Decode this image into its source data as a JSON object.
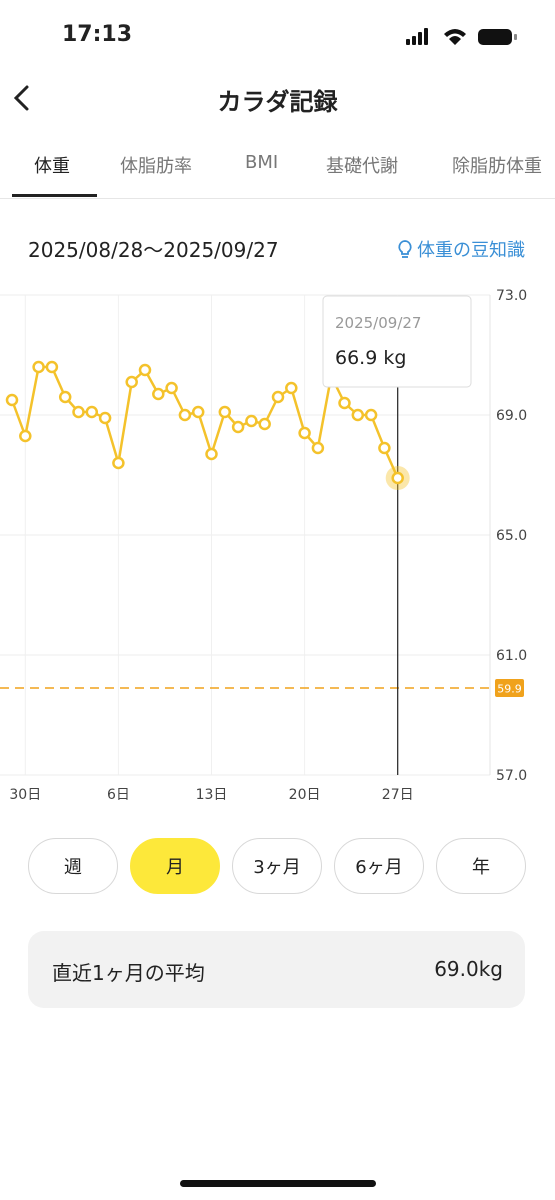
{
  "status_bar": {
    "time": "17:13"
  },
  "header": {
    "title": "カラダ記録"
  },
  "tabs": [
    "体重",
    "体脂肪率",
    "BMI",
    "基礎代謝",
    "除脂肪体重"
  ],
  "selected_tab": 0,
  "date_range": "2025/08/28～2025/09/27",
  "tip_link": "体重の豆知識",
  "chart_data": {
    "type": "line",
    "categories": [
      null,
      "30日",
      null,
      null,
      null,
      null,
      null,
      null,
      "6日",
      null,
      null,
      null,
      null,
      null,
      null,
      "13日",
      null,
      null,
      null,
      null,
      null,
      null,
      "20日",
      null,
      null,
      null,
      null,
      null,
      null,
      "27日"
    ],
    "series": [
      {
        "name": "体重",
        "color": "#f4c22b",
        "values": [
          69.5,
          68.3,
          70.6,
          70.6,
          69.6,
          69.1,
          69.1,
          68.9,
          67.4,
          70.1,
          70.5,
          69.7,
          69.9,
          69.0,
          69.1,
          67.7,
          69.1,
          68.6,
          68.8,
          68.7,
          69.6,
          69.9,
          68.4,
          67.9,
          70.3,
          69.4,
          69.0,
          69.0,
          67.9,
          66.9
        ]
      }
    ],
    "ylim": [
      57,
      73
    ],
    "yticks": [
      {
        "value": 73,
        "label": "73.0"
      },
      {
        "value": 69,
        "label": "69.0"
      },
      {
        "value": 65,
        "label": "65.0"
      },
      {
        "value": 61,
        "label": "61.0"
      },
      {
        "value": 57,
        "label": "57.0"
      }
    ],
    "grid": true,
    "target": 59.9,
    "target_color": "#f0a21c",
    "tooltip": {
      "index": 29,
      "title": "2025/09/27",
      "text": "66.9 kg"
    }
  },
  "period_buttons": [
    "週",
    "月",
    "3ヶ月",
    "6ヶ月",
    "年"
  ],
  "selected_period": 1,
  "summary": {
    "label": "直近1ヶ月の平均",
    "value": "69.0kg"
  }
}
